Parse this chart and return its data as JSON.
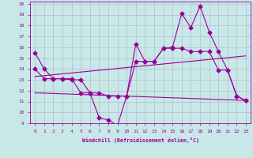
{
  "title": "",
  "xlabel": "Windchill (Refroidissement éolien,°C)",
  "x": [
    0,
    1,
    2,
    3,
    4,
    5,
    6,
    7,
    8,
    9,
    10,
    11,
    12,
    13,
    14,
    15,
    16,
    17,
    18,
    19,
    20,
    21,
    22,
    23
  ],
  "line1": [
    15.5,
    14.0,
    13.1,
    13.1,
    13.0,
    13.0,
    11.8,
    9.5,
    9.3,
    8.8,
    11.5,
    16.3,
    14.7,
    14.7,
    15.9,
    16.0,
    19.1,
    17.8,
    19.8,
    17.4,
    15.6,
    13.9,
    11.5,
    11.1
  ],
  "line2": [
    14.0,
    13.1,
    13.1,
    13.1,
    13.1,
    11.8,
    11.8,
    11.8,
    11.5,
    11.5,
    11.5,
    14.7,
    14.7,
    14.7,
    15.9,
    15.9,
    15.9,
    15.6,
    15.6,
    15.6,
    13.9,
    13.9,
    11.5,
    11.1
  ],
  "line3_start": 13.3,
  "line3_end": 15.2,
  "line4_start": 11.8,
  "line4_end": 11.1,
  "ylim": [
    9,
    20
  ],
  "xlim": [
    -0.5,
    23.5
  ],
  "yticks": [
    9,
    10,
    11,
    12,
    13,
    14,
    15,
    16,
    17,
    18,
    19,
    20
  ],
  "xticks": [
    0,
    1,
    2,
    3,
    4,
    5,
    6,
    7,
    8,
    9,
    10,
    11,
    12,
    13,
    14,
    15,
    16,
    17,
    18,
    19,
    20,
    21,
    22,
    23
  ],
  "line_color": "#990099",
  "bg_color": "#c8e8e8",
  "grid_color": "#b0b0cc",
  "markersize": 2.5,
  "linewidth": 0.8,
  "fig_width": 3.2,
  "fig_height": 2.0,
  "dpi": 100
}
